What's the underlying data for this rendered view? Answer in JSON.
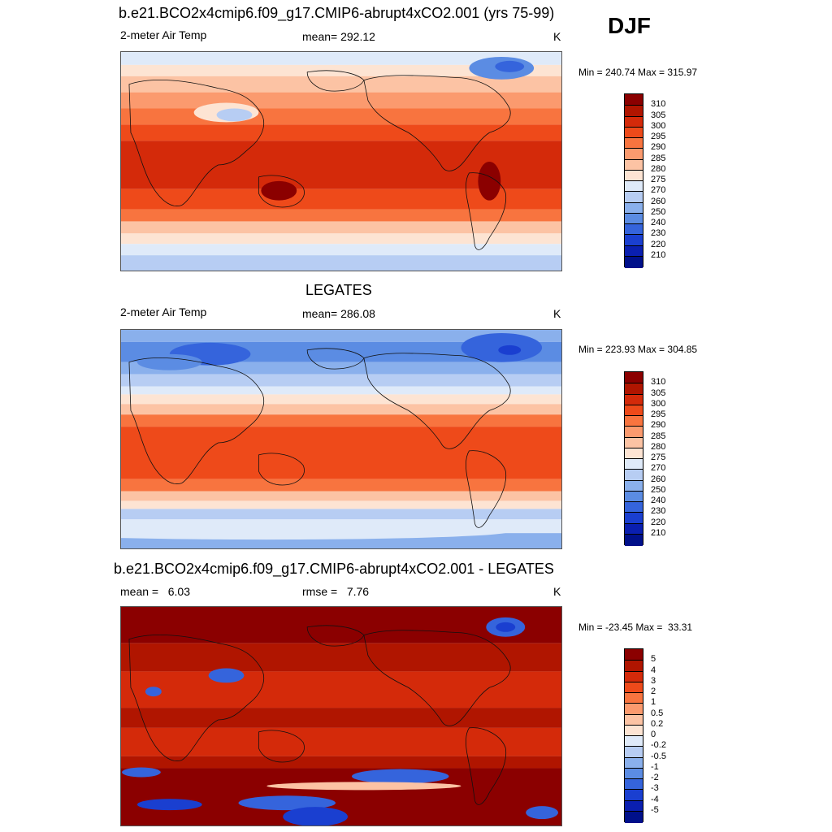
{
  "season": "DJF",
  "panels": [
    {
      "title": "b.e21.BCO2x4cmip6.f09_g17.CMIP6-abrupt4xCO2.001 (yrs 75-99)",
      "left_label": "2-meter Air Temp",
      "center_label": "mean= 292.12",
      "units": "K",
      "minmax": "Min = 240.74 Max = 315.97"
    },
    {
      "title": "LEGATES",
      "left_label": "2-meter Air Temp",
      "center_label": "mean= 286.08",
      "units": "K",
      "minmax": "Min = 223.93 Max = 304.85"
    },
    {
      "title": "b.e21.BCO2x4cmip6.f09_g17.CMIP6-abrupt4xCO2.001 - LEGATES",
      "left_label": "mean =   6.03",
      "center_label": "rmse =   7.76",
      "units": "K",
      "minmax": "Min = -23.45 Max =  33.31"
    }
  ],
  "chart_data": [
    {
      "type": "heatmap",
      "title": "b.e21.BCO2x4cmip6.f09_g17.CMIP6-abrupt4xCO2.001 (yrs 75-99)",
      "variable": "2-meter Air Temp",
      "units": "K",
      "mean": 292.12,
      "min": 240.74,
      "max": 315.97,
      "colorbar_levels": [
        "310",
        "305",
        "300",
        "295",
        "290",
        "285",
        "280",
        "275",
        "270",
        "260",
        "250",
        "240",
        "230",
        "220",
        "210"
      ],
      "colorbar_colors": [
        "#8b0000",
        "#b01500",
        "#d42a0a",
        "#ee4a1a",
        "#f8743f",
        "#fb9a6e",
        "#fcc3a4",
        "#fde4d3",
        "#dfeaf9",
        "#b7cdf3",
        "#8ab0ec",
        "#5b8ce3",
        "#3564dc",
        "#1a3fd0",
        "#0a1fb0",
        "#00108a"
      ]
    },
    {
      "type": "heatmap",
      "title": "LEGATES",
      "variable": "2-meter Air Temp",
      "units": "K",
      "mean": 286.08,
      "min": 223.93,
      "max": 304.85,
      "colorbar_levels": [
        "310",
        "305",
        "300",
        "295",
        "290",
        "285",
        "280",
        "275",
        "270",
        "260",
        "250",
        "240",
        "230",
        "220",
        "210"
      ],
      "colorbar_colors": [
        "#8b0000",
        "#b01500",
        "#d42a0a",
        "#ee4a1a",
        "#f8743f",
        "#fb9a6e",
        "#fcc3a4",
        "#fde4d3",
        "#dfeaf9",
        "#b7cdf3",
        "#8ab0ec",
        "#5b8ce3",
        "#3564dc",
        "#1a3fd0",
        "#0a1fb0",
        "#00108a"
      ]
    },
    {
      "type": "heatmap",
      "title": "b.e21.BCO2x4cmip6.f09_g17.CMIP6-abrupt4xCO2.001 - LEGATES",
      "units": "K",
      "mean": 6.03,
      "rmse": 7.76,
      "min": -23.45,
      "max": 33.31,
      "colorbar_levels": [
        "5",
        "4",
        "3",
        "2",
        "1",
        "0.5",
        "0.2",
        "0",
        "-0.2",
        "-0.5",
        "-1",
        "-2",
        "-3",
        "-4",
        "-5"
      ],
      "colorbar_colors": [
        "#8b0000",
        "#b01500",
        "#d42a0a",
        "#ee4a1a",
        "#f8743f",
        "#fb9a6e",
        "#fcc3a4",
        "#fde4d3",
        "#dfeaf9",
        "#b7cdf3",
        "#8ab0ec",
        "#5b8ce3",
        "#3564dc",
        "#1a3fd0",
        "#0a1fb0",
        "#00108a"
      ]
    }
  ]
}
